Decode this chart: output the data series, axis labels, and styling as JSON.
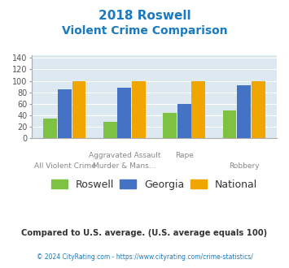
{
  "title_line1": "2018 Roswell",
  "title_line2": "Violent Crime Comparison",
  "title_color": "#1a7abf",
  "roswell": [
    35,
    29,
    45,
    48
  ],
  "georgia": [
    86,
    88,
    60,
    92
  ],
  "national": [
    100,
    100,
    100,
    100
  ],
  "roswell_color": "#7dc242",
  "georgia_color": "#4472c4",
  "national_color": "#f0a500",
  "ylim": [
    0,
    145
  ],
  "yticks": [
    0,
    20,
    40,
    60,
    80,
    100,
    120,
    140
  ],
  "plot_bg": "#dce9f0",
  "top_labels": [
    "",
    "Aggravated Assault",
    "Rape",
    ""
  ],
  "bot_labels": [
    "All Violent Crime",
    "Murder & Mans...",
    "",
    "Robbery"
  ],
  "footer_text": "Compared to U.S. average. (U.S. average equals 100)",
  "footer_color": "#333333",
  "credit_text": "© 2024 CityRating.com - https://www.cityrating.com/crime-statistics/",
  "credit_color": "#1a7abf",
  "legend_labels": [
    "Roswell",
    "Georgia",
    "National"
  ]
}
